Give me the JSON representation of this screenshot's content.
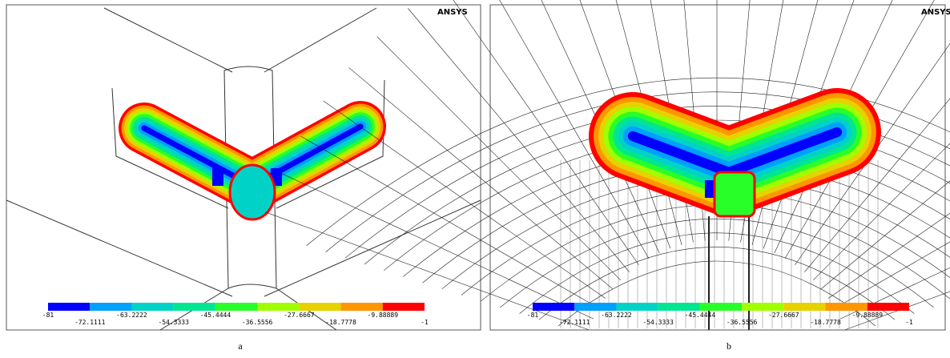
{
  "panels": [
    {
      "caption": "a",
      "logo": "ANSYS"
    },
    {
      "caption": "b",
      "logo": "ANSYS"
    }
  ],
  "legend": {
    "levels": [
      -81,
      -72.1111,
      -63.2222,
      -54.3333,
      -45.4444,
      -36.5556,
      -27.6667,
      -18.7778,
      -9.88889,
      -1
    ],
    "colors": [
      "#0000ff",
      "#00a0ff",
      "#00d2c8",
      "#00e690",
      "#28ff28",
      "#a0ff00",
      "#e6d200",
      "#ff9600",
      "#ff0000"
    ]
  }
}
